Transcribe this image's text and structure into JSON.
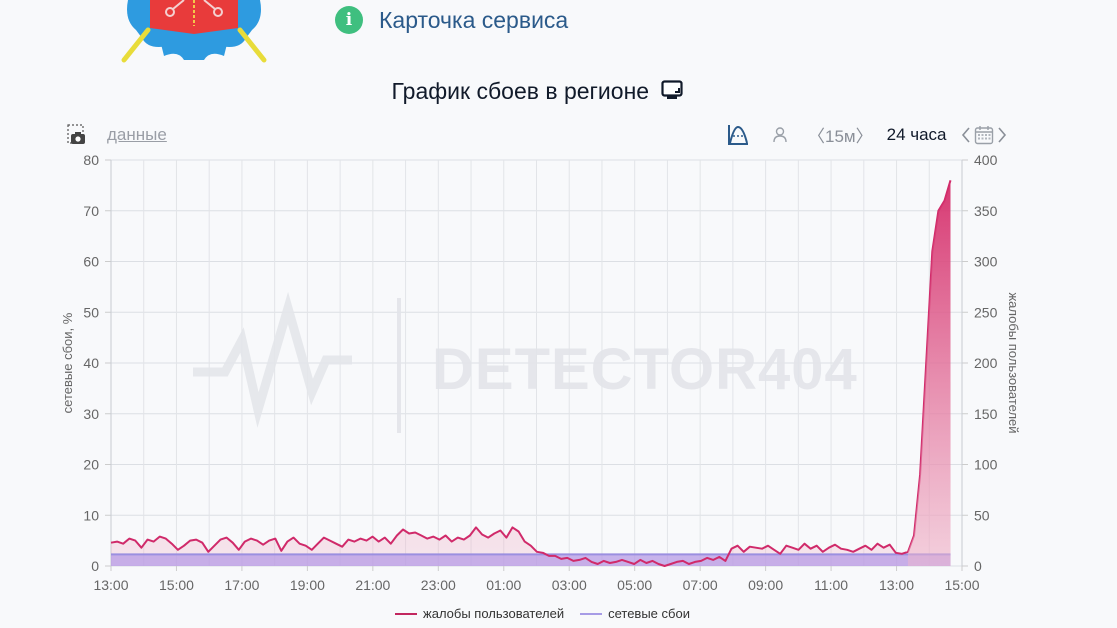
{
  "header": {
    "service_card_label": "Карточка сервиса",
    "info_icon_glyph": "i"
  },
  "chart_section": {
    "title": "График сбоев в регионе",
    "toolbar": {
      "data_link": "данные",
      "interval": "〈15м〉",
      "range": "24 часа"
    }
  },
  "colors": {
    "complaints": "#d02a6a",
    "network": "#9b8fe0",
    "accent": "#2b5a8a",
    "info_green": "#3fbf7f"
  },
  "chart_data": {
    "type": "area",
    "title": "График сбоев в регионе",
    "watermark": "DETECTOR404",
    "x_ticks": [
      "13:00",
      "15:00",
      "17:00",
      "19:00",
      "21:00",
      "23:00",
      "01:00",
      "03:00",
      "05:00",
      "07:00",
      "09:00",
      "11:00",
      "13:00",
      "15:00"
    ],
    "x_range_hours": [
      0,
      26
    ],
    "x_step_minutes": 15,
    "y_left": {
      "label": "сетевые сбои, %",
      "ticks": [
        0,
        10,
        20,
        30,
        40,
        50,
        60,
        70,
        80
      ],
      "range": [
        0,
        80
      ]
    },
    "y_right": {
      "label": "жалобы пользователей",
      "ticks": [
        0,
        50,
        100,
        150,
        200,
        250,
        300,
        350,
        400
      ],
      "range": [
        0,
        400
      ]
    },
    "grid": true,
    "legend_position": "bottom",
    "series": [
      {
        "name": "жалобы пользователей",
        "axis": "right",
        "color": "#d02a6a",
        "values": [
          23,
          24,
          22,
          27,
          25,
          18,
          26,
          24,
          29,
          27,
          22,
          16,
          20,
          25,
          26,
          23,
          14,
          20,
          26,
          28,
          23,
          16,
          24,
          27,
          25,
          21,
          25,
          27,
          15,
          24,
          28,
          22,
          20,
          16,
          22,
          28,
          25,
          22,
          19,
          26,
          24,
          27,
          25,
          29,
          24,
          28,
          22,
          30,
          36,
          32,
          33,
          30,
          27,
          29,
          26,
          30,
          24,
          28,
          26,
          30,
          38,
          31,
          28,
          32,
          35,
          28,
          38,
          34,
          24,
          20,
          14,
          13,
          10,
          10,
          7,
          8,
          5,
          6,
          8,
          4,
          2,
          5,
          3,
          4,
          6,
          4,
          2,
          6,
          3,
          5,
          2,
          0,
          2,
          4,
          5,
          2,
          4,
          5,
          8,
          6,
          9,
          5,
          17,
          20,
          14,
          19,
          18,
          17,
          20,
          16,
          12,
          20,
          18,
          16,
          22,
          17,
          20,
          14,
          18,
          21,
          17,
          16,
          14,
          17,
          20,
          16,
          22,
          18,
          21,
          13,
          12,
          14,
          30,
          90,
          200,
          310,
          350,
          360,
          380
        ]
      },
      {
        "name": "сетевые сбои",
        "axis": "left",
        "color": "#9b8fe0",
        "values_constant_approx": 2.3
      }
    ]
  },
  "legend": [
    {
      "label": "жалобы пользователей",
      "color": "#d02a6a"
    },
    {
      "label": "сетевые сбои",
      "color": "#9b8fe0"
    }
  ]
}
